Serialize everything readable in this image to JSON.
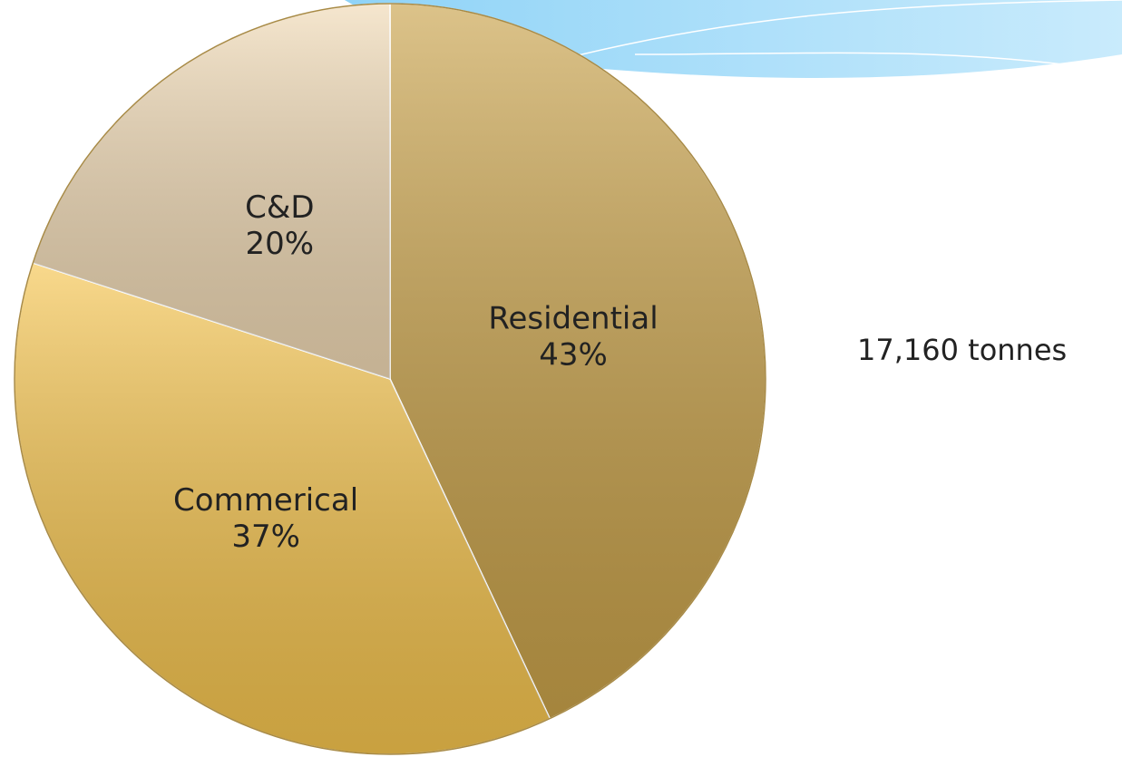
{
  "chart_data": {
    "type": "pie",
    "categories": [
      "Residential",
      "Commerical",
      "C&D"
    ],
    "values": [
      43,
      37,
      20
    ],
    "value_labels": [
      "43%",
      "37%",
      "20%"
    ],
    "colors": [
      "#c9a24a",
      "#f5c44e",
      "#f0d9b4"
    ],
    "annotation": "17,160 tonnes"
  }
}
